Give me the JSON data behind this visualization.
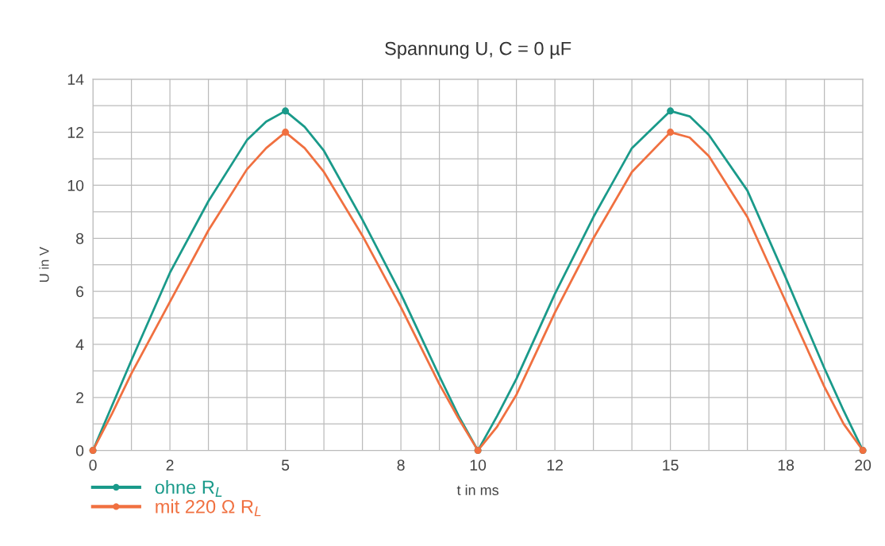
{
  "chart_data": {
    "type": "line",
    "title": "Spannung U, C = 0 µF",
    "xlabel": "t in ms",
    "ylabel": "U in V",
    "xlim": [
      0,
      20
    ],
    "ylim": [
      0,
      14
    ],
    "xticks": [
      0,
      {
        "value": 1,
        "label": null
      },
      2,
      {
        "value": 3,
        "label": null
      },
      {
        "value": 4,
        "label": null
      },
      5,
      {
        "value": 6,
        "label": null
      },
      {
        "value": 7,
        "label": null
      },
      8,
      {
        "value": 9,
        "label": null
      },
      10,
      {
        "value": 11,
        "label": null
      },
      12,
      {
        "value": 13,
        "label": null
      },
      {
        "value": 14,
        "label": null
      },
      15,
      {
        "value": 16,
        "label": null
      },
      {
        "value": 17,
        "label": null
      },
      18,
      {
        "value": 19,
        "label": null
      },
      20
    ],
    "yticks": [
      0,
      {
        "value": 1,
        "label": null
      },
      2,
      {
        "value": 3,
        "label": null
      },
      4,
      {
        "value": 5,
        "label": null
      },
      6,
      {
        "value": 7,
        "label": null
      },
      8,
      {
        "value": 9,
        "label": null
      },
      10,
      {
        "value": 11,
        "label": null
      },
      12,
      {
        "value": 13,
        "label": null
      },
      14
    ],
    "grid": true,
    "legend": "bottom left",
    "marker": "none",
    "line_style": "solid",
    "series": [
      {
        "name": "ohne R$_{L}$",
        "color": "#1a9a8a",
        "x": [
          0,
          0.5,
          1,
          2,
          3,
          4,
          4.5,
          5,
          5.5,
          6,
          7,
          8,
          9,
          9.5,
          10,
          10.5,
          11,
          12,
          13,
          14,
          15,
          15.5,
          16,
          17,
          18,
          19,
          19.5,
          20
        ],
        "values": [
          0,
          1.7,
          3.4,
          6.7,
          9.4,
          11.7,
          12.4,
          12.8,
          12.2,
          11.3,
          8.7,
          5.9,
          2.8,
          1.3,
          0,
          1.3,
          2.7,
          5.9,
          8.8,
          11.4,
          12.8,
          12.6,
          11.9,
          9.8,
          6.5,
          3.1,
          1.5,
          0
        ]
      },
      {
        "name": "mit 220 Ω R$_{L}$",
        "color": "#f07040",
        "x": [
          0,
          0.5,
          1,
          2,
          3,
          4,
          4.5,
          5,
          5.5,
          6,
          7,
          8,
          9,
          9.5,
          10,
          10.5,
          11,
          12,
          13,
          14,
          15,
          15.5,
          16,
          17,
          18,
          19,
          19.5,
          20
        ],
        "values": [
          0,
          1.4,
          2.9,
          5.6,
          8.3,
          10.6,
          11.4,
          12.0,
          11.4,
          10.5,
          8.1,
          5.4,
          2.5,
          1.2,
          0,
          0.9,
          2.1,
          5.2,
          8.0,
          10.5,
          12.0,
          11.8,
          11.1,
          8.8,
          5.6,
          2.4,
          1.0,
          0
        ]
      },
      {
        "type": "scatter",
        "color": "#1a9a8a",
        "x": [
          0,
          5,
          10,
          15,
          20
        ],
        "values": [
          0,
          12.8,
          0,
          12.8,
          0
        ],
        "marker": "circle"
      },
      {
        "type": "scatter",
        "color": "#f07040",
        "x": [
          0,
          5,
          10,
          15,
          20
        ],
        "values": [
          0,
          12.0,
          0,
          12.0,
          0
        ],
        "marker": "circle"
      }
    ]
  }
}
